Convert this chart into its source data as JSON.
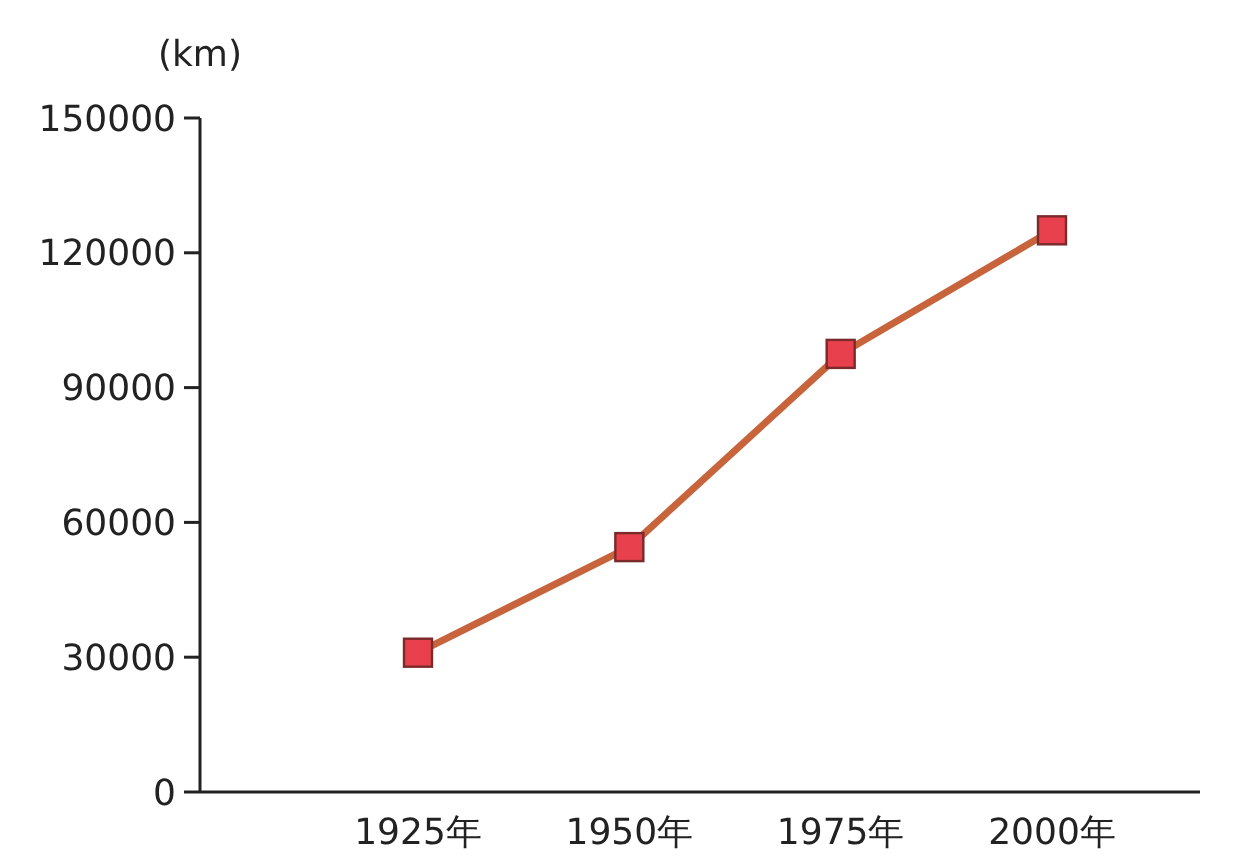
{
  "chart_data": {
    "type": "line",
    "ylabel": "(km)",
    "categories": [
      "1925年",
      "1950年",
      "1975年",
      "2000年"
    ],
    "series": [
      {
        "color": "#c8643c",
        "values": [
          31000,
          54500,
          97500,
          125000
        ]
      }
    ],
    "ylim": [
      0,
      150000
    ],
    "yticks": [
      0,
      30000,
      60000,
      90000,
      120000,
      150000
    ],
    "marker": "square",
    "line_style": "solid",
    "grid": false
  }
}
